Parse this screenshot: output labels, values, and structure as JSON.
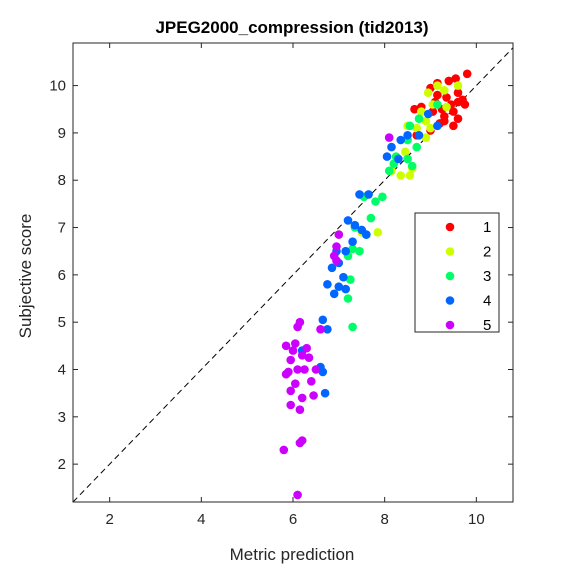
{
  "chart_data": {
    "type": "scatter",
    "title": "JPEG2000_compression (tid2013)",
    "xlabel": "Metric prediction",
    "ylabel": "Subjective score",
    "xlim": [
      1.2,
      10.8
    ],
    "ylim": [
      1.2,
      10.9
    ],
    "xticks": [
      "2",
      "4",
      "6",
      "8",
      "10"
    ],
    "yticks": [
      "2",
      "3",
      "4",
      "5",
      "6",
      "7",
      "8",
      "9",
      "10"
    ],
    "grid": false,
    "reference_line": "y = x (dashed)",
    "legend_position": "right, mid-height inside the axes",
    "series": [
      {
        "name": "1",
        "color": "#ff0000",
        "points": [
          [
            9.8,
            10.25
          ],
          [
            9.55,
            10.15
          ],
          [
            9.15,
            10.05
          ],
          [
            9.4,
            10.1
          ],
          [
            9.0,
            9.95
          ],
          [
            9.6,
            9.85
          ],
          [
            9.35,
            9.75
          ],
          [
            9.7,
            9.7
          ],
          [
            9.1,
            9.65
          ],
          [
            9.45,
            9.6
          ],
          [
            9.25,
            9.5
          ],
          [
            9.5,
            9.45
          ],
          [
            9.75,
            9.6
          ],
          [
            8.65,
            9.5
          ],
          [
            8.8,
            9.55
          ],
          [
            9.05,
            9.45
          ],
          [
            9.3,
            9.35
          ],
          [
            9.6,
            9.3
          ],
          [
            9.2,
            9.2
          ],
          [
            9.5,
            9.15
          ],
          [
            9.0,
            9.05
          ],
          [
            8.7,
            8.95
          ],
          [
            9.3,
            9.25
          ],
          [
            9.6,
            9.65
          ],
          [
            9.15,
            9.8
          ]
        ]
      },
      {
        "name": "2",
        "color": "#ccff00",
        "points": [
          [
            9.15,
            10.0
          ],
          [
            9.3,
            9.9
          ],
          [
            9.6,
            10.0
          ],
          [
            8.95,
            9.85
          ],
          [
            9.05,
            9.6
          ],
          [
            9.35,
            9.55
          ],
          [
            8.8,
            9.45
          ],
          [
            8.9,
            9.25
          ],
          [
            9.0,
            9.1
          ],
          [
            8.7,
            9.1
          ],
          [
            8.5,
            9.15
          ],
          [
            8.9,
            8.9
          ],
          [
            8.45,
            8.6
          ],
          [
            8.6,
            8.25
          ],
          [
            8.15,
            8.2
          ],
          [
            8.35,
            8.1
          ],
          [
            8.55,
            8.1
          ],
          [
            7.85,
            6.9
          ],
          [
            7.5,
            6.9
          ],
          [
            7.0,
            6.85
          ]
        ]
      },
      {
        "name": "3",
        "color": "#00ff66",
        "points": [
          [
            9.15,
            9.6
          ],
          [
            8.75,
            9.3
          ],
          [
            8.55,
            9.15
          ],
          [
            8.7,
            8.7
          ],
          [
            8.5,
            8.85
          ],
          [
            8.25,
            8.5
          ],
          [
            8.5,
            8.45
          ],
          [
            8.6,
            8.3
          ],
          [
            8.2,
            8.35
          ],
          [
            8.1,
            8.2
          ],
          [
            7.95,
            7.65
          ],
          [
            7.8,
            7.55
          ],
          [
            7.55,
            7.65
          ],
          [
            7.7,
            7.2
          ],
          [
            7.35,
            7.0
          ],
          [
            7.6,
            6.85
          ],
          [
            7.3,
            6.55
          ],
          [
            7.45,
            6.5
          ],
          [
            7.2,
            6.4
          ],
          [
            7.25,
            5.9
          ],
          [
            7.2,
            5.5
          ],
          [
            7.3,
            4.9
          ]
        ]
      },
      {
        "name": "4",
        "color": "#0066ff",
        "points": [
          [
            8.95,
            9.4
          ],
          [
            9.15,
            9.15
          ],
          [
            8.75,
            8.95
          ],
          [
            8.5,
            8.95
          ],
          [
            8.35,
            8.85
          ],
          [
            8.15,
            8.7
          ],
          [
            8.05,
            8.5
          ],
          [
            8.3,
            8.45
          ],
          [
            7.45,
            7.7
          ],
          [
            7.65,
            7.7
          ],
          [
            7.2,
            7.15
          ],
          [
            7.35,
            7.05
          ],
          [
            7.5,
            6.95
          ],
          [
            7.6,
            6.85
          ],
          [
            7.3,
            6.7
          ],
          [
            7.15,
            6.5
          ],
          [
            6.95,
            6.5
          ],
          [
            7.0,
            6.25
          ],
          [
            6.85,
            6.15
          ],
          [
            7.1,
            5.95
          ],
          [
            7.0,
            5.75
          ],
          [
            6.75,
            5.8
          ],
          [
            6.9,
            5.6
          ],
          [
            7.15,
            5.7
          ],
          [
            6.65,
            5.05
          ],
          [
            6.75,
            4.85
          ],
          [
            6.6,
            4.05
          ],
          [
            6.65,
            3.95
          ],
          [
            6.2,
            4.4
          ],
          [
            6.7,
            3.5
          ]
        ]
      },
      {
        "name": "5",
        "color": "#cc00ff",
        "points": [
          [
            8.1,
            8.9
          ],
          [
            7.0,
            6.85
          ],
          [
            6.95,
            6.6
          ],
          [
            6.9,
            6.4
          ],
          [
            6.95,
            6.3
          ],
          [
            6.15,
            5.0
          ],
          [
            6.1,
            4.9
          ],
          [
            6.6,
            4.85
          ],
          [
            6.05,
            4.55
          ],
          [
            5.85,
            4.5
          ],
          [
            6.3,
            4.45
          ],
          [
            6.0,
            4.4
          ],
          [
            6.2,
            4.3
          ],
          [
            5.95,
            4.2
          ],
          [
            6.35,
            4.25
          ],
          [
            6.25,
            4.0
          ],
          [
            6.5,
            4.0
          ],
          [
            6.1,
            4.0
          ],
          [
            5.9,
            3.95
          ],
          [
            5.85,
            3.9
          ],
          [
            6.4,
            3.75
          ],
          [
            6.05,
            3.7
          ],
          [
            5.95,
            3.55
          ],
          [
            6.45,
            3.45
          ],
          [
            6.2,
            3.4
          ],
          [
            5.95,
            3.25
          ],
          [
            6.15,
            3.15
          ],
          [
            6.2,
            2.5
          ],
          [
            6.15,
            2.45
          ],
          [
            5.8,
            2.3
          ],
          [
            6.1,
            1.35
          ]
        ]
      }
    ]
  }
}
